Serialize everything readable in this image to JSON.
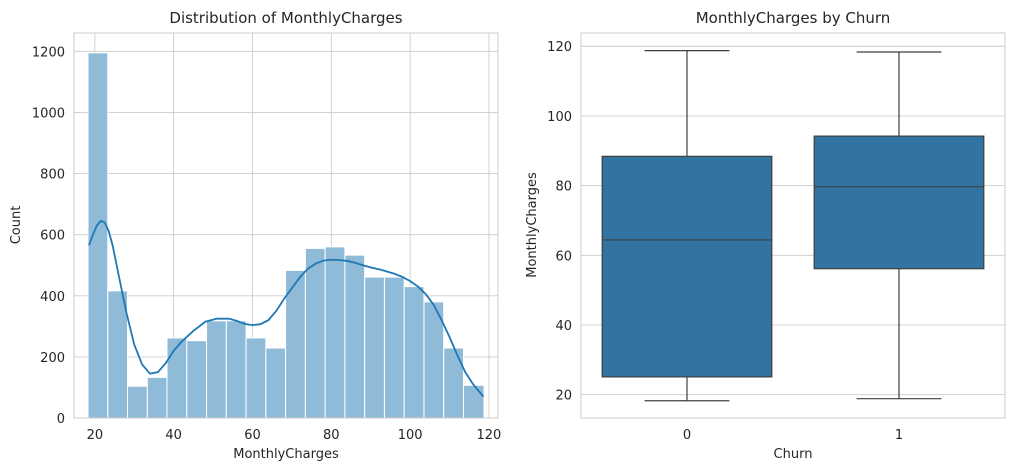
{
  "chart_data": [
    {
      "type": "bar",
      "subtype": "histogram_with_kde",
      "title": "Distribution of MonthlyCharges",
      "xlabel": "MonthlyCharges",
      "ylabel": "Count",
      "xlim": [
        14.7,
        122.3
      ],
      "ylim": [
        0,
        1260
      ],
      "xticks": [
        20,
        40,
        60,
        80,
        100,
        120
      ],
      "yticks": [
        0,
        200,
        400,
        600,
        800,
        1000,
        1200
      ],
      "grid": true,
      "bar_color": "#8fbbd9",
      "line_color": "#1f77b4",
      "bins": [
        {
          "x0": 18.25,
          "x1": 23.27,
          "count": 1195
        },
        {
          "x0": 23.27,
          "x1": 28.28,
          "count": 416
        },
        {
          "x0": 28.28,
          "x1": 33.3,
          "count": 104
        },
        {
          "x0": 33.3,
          "x1": 38.31,
          "count": 133
        },
        {
          "x0": 38.31,
          "x1": 43.33,
          "count": 262
        },
        {
          "x0": 43.33,
          "x1": 48.34,
          "count": 253
        },
        {
          "x0": 48.34,
          "x1": 53.36,
          "count": 318
        },
        {
          "x0": 53.36,
          "x1": 58.37,
          "count": 318
        },
        {
          "x0": 58.37,
          "x1": 63.39,
          "count": 262
        },
        {
          "x0": 63.39,
          "x1": 68.4,
          "count": 229
        },
        {
          "x0": 68.4,
          "x1": 73.42,
          "count": 483
        },
        {
          "x0": 73.42,
          "x1": 78.43,
          "count": 555
        },
        {
          "x0": 78.43,
          "x1": 83.45,
          "count": 560
        },
        {
          "x0": 83.45,
          "x1": 88.46,
          "count": 533
        },
        {
          "x0": 88.46,
          "x1": 93.48,
          "count": 461
        },
        {
          "x0": 93.48,
          "x1": 98.49,
          "count": 461
        },
        {
          "x0": 98.49,
          "x1": 103.51,
          "count": 430
        },
        {
          "x0": 103.51,
          "x1": 108.52,
          "count": 380
        },
        {
          "x0": 108.52,
          "x1": 113.54,
          "count": 229
        },
        {
          "x0": 113.54,
          "x1": 118.75,
          "count": 107
        }
      ],
      "kde": {
        "x": [
          18.5,
          19.5,
          20.5,
          21.5,
          22.5,
          23.5,
          24.5,
          26,
          28,
          30,
          32,
          34,
          36,
          38,
          40,
          42,
          45,
          48,
          51,
          54,
          56,
          58,
          60,
          62,
          64,
          66,
          68,
          70,
          72,
          74,
          76,
          78,
          80,
          82,
          84,
          86,
          88,
          90,
          92,
          94,
          96,
          98,
          100,
          102,
          104,
          106,
          108,
          110,
          112,
          114,
          116,
          118.6
        ],
        "y": [
          565,
          600,
          630,
          645,
          640,
          612,
          565,
          470,
          345,
          240,
          175,
          145,
          150,
          180,
          220,
          250,
          285,
          315,
          325,
          325,
          318,
          308,
          304,
          307,
          320,
          350,
          390,
          425,
          460,
          488,
          505,
          515,
          518,
          517,
          514,
          508,
          500,
          493,
          487,
          480,
          472,
          462,
          448,
          430,
          405,
          370,
          320,
          265,
          205,
          150,
          110,
          70
        ]
      }
    },
    {
      "type": "box",
      "title": "MonthlyCharges by Churn",
      "xlabel": "Churn",
      "ylabel": "MonthlyCharges",
      "ylim": [
        13.3,
        123.8
      ],
      "yticks": [
        20,
        40,
        60,
        80,
        100,
        120
      ],
      "grid": true,
      "box_color": "#3274a1",
      "categories": [
        "0",
        "1"
      ],
      "boxes": [
        {
          "category": "0",
          "whisker_low": 18.25,
          "q1": 25.1,
          "median": 64.4,
          "q3": 88.4,
          "whisker_high": 118.75
        },
        {
          "category": "1",
          "whisker_low": 18.85,
          "q1": 56.15,
          "median": 79.65,
          "q3": 94.2,
          "whisker_high": 118.35
        }
      ]
    }
  ]
}
